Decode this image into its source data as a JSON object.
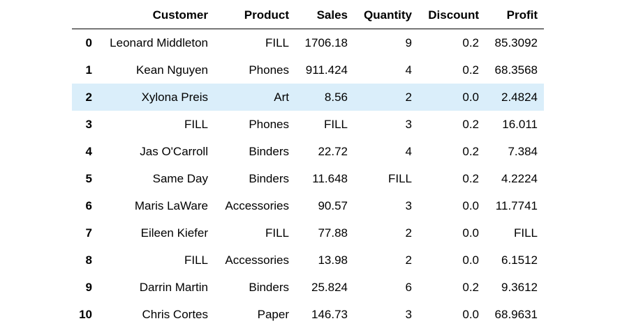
{
  "table": {
    "columns": [
      "",
      "Customer",
      "Product",
      "Sales",
      "Quantity",
      "Discount",
      "Profit"
    ],
    "rows": [
      [
        "0",
        "Leonard Middleton",
        "FILL",
        "1706.18",
        "9",
        "0.2",
        "85.3092"
      ],
      [
        "1",
        "Kean Nguyen",
        "Phones",
        "911.424",
        "4",
        "0.2",
        "68.3568"
      ],
      [
        "2",
        "Xylona Preis",
        "Art",
        "8.56",
        "2",
        "0.0",
        "2.4824"
      ],
      [
        "3",
        "FILL",
        "Phones",
        "FILL",
        "3",
        "0.2",
        "16.011"
      ],
      [
        "4",
        "Jas O'Carroll",
        "Binders",
        "22.72",
        "4",
        "0.2",
        "7.384"
      ],
      [
        "5",
        "Same Day",
        "Binders",
        "11.648",
        "FILL",
        "0.2",
        "4.2224"
      ],
      [
        "6",
        "Maris LaWare",
        "Accessories",
        "90.57",
        "3",
        "0.0",
        "11.7741"
      ],
      [
        "7",
        "Eileen Kiefer",
        "FILL",
        "77.88",
        "2",
        "0.0",
        "FILL"
      ],
      [
        "8",
        "FILL",
        "Accessories",
        "13.98",
        "2",
        "0.0",
        "6.1512"
      ],
      [
        "9",
        "Darrin Martin",
        "Binders",
        "25.824",
        "6",
        "0.2",
        "9.3612"
      ],
      [
        "10",
        "Chris Cortes",
        "Paper",
        "146.73",
        "3",
        "0.0",
        "68.9631"
      ]
    ],
    "highlighted_row": 2,
    "highlight_color": "#daeefa"
  }
}
